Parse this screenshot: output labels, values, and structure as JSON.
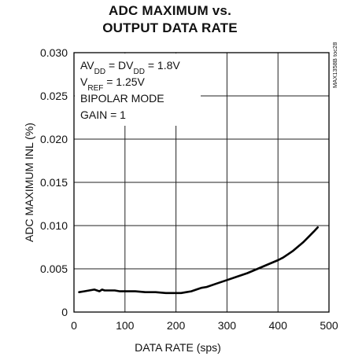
{
  "chart_data": {
    "type": "line",
    "title_lines": [
      "ADC MAXIMUM vs.",
      "OUTPUT DATA RATE"
    ],
    "xlabel": "DATA RATE (sps)",
    "ylabel": "ADC MAXIMUM INL (%)",
    "xlim": [
      0,
      500
    ],
    "ylim": [
      0,
      0.03
    ],
    "x_ticks": [
      0,
      100,
      200,
      300,
      400,
      500
    ],
    "x_tick_labels": [
      "0",
      "100",
      "200",
      "300",
      "400",
      "500"
    ],
    "y_ticks": [
      0,
      0.005,
      0.01,
      0.015,
      0.02,
      0.025,
      0.03
    ],
    "y_tick_labels": [
      "0",
      "0.005",
      "0.010",
      "0.015",
      "0.020",
      "0.025",
      "0.030"
    ],
    "grid": true,
    "annotation_lines": [
      {
        "parts": [
          {
            "t": "AV"
          },
          {
            "t": "DD",
            "sub": true
          },
          {
            "t": " = DV"
          },
          {
            "t": "DD",
            "sub": true
          },
          {
            "t": " = 1.8V"
          }
        ]
      },
      {
        "parts": [
          {
            "t": "V"
          },
          {
            "t": "REF",
            "sub": true
          },
          {
            "t": " = 1.25V"
          }
        ]
      },
      {
        "parts": [
          {
            "t": "BIPOLAR MODE"
          }
        ]
      },
      {
        "parts": [
          {
            "t": "GAIN = 1"
          }
        ]
      }
    ],
    "watermark": "MAX1358B toc28",
    "series": [
      {
        "x": [
          10,
          20,
          30,
          40,
          45,
          50,
          55,
          60,
          70,
          80,
          90,
          100,
          120,
          140,
          160,
          180,
          200,
          210,
          220,
          230,
          240,
          250,
          260,
          280,
          300,
          320,
          340,
          360,
          380,
          400,
          410,
          420,
          430,
          440,
          450,
          460,
          470,
          478
        ],
        "y": [
          0.0023,
          0.0024,
          0.0025,
          0.0026,
          0.0025,
          0.0024,
          0.0026,
          0.0025,
          0.0025,
          0.0025,
          0.0024,
          0.0024,
          0.0024,
          0.0023,
          0.0023,
          0.0022,
          0.0022,
          0.0022,
          0.0023,
          0.0024,
          0.0026,
          0.0028,
          0.0029,
          0.0033,
          0.0037,
          0.0041,
          0.0045,
          0.005,
          0.0055,
          0.006,
          0.0063,
          0.0067,
          0.0071,
          0.0076,
          0.0081,
          0.0087,
          0.0093,
          0.0098
        ]
      }
    ]
  }
}
